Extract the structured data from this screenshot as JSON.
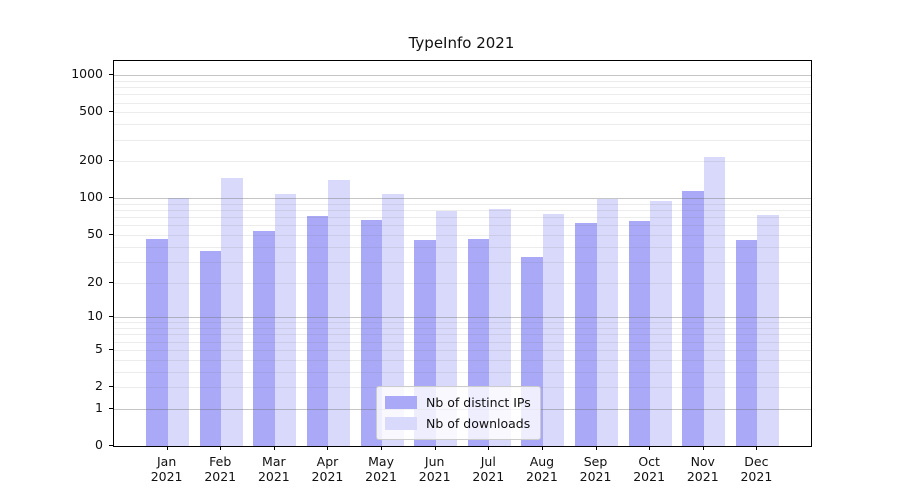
{
  "chart_data": {
    "type": "bar",
    "title": "TypeInfo 2021",
    "scale": "log1p",
    "categories": [
      "Jan 2021",
      "Feb 2021",
      "Mar 2021",
      "Apr 2021",
      "May 2021",
      "Jun 2021",
      "Jul 2021",
      "Aug 2021",
      "Sep 2021",
      "Oct 2021",
      "Nov 2021",
      "Dec 2021"
    ],
    "series": [
      {
        "name": "Nb of distinct IPs",
        "color": "#a9a9f7",
        "values": [
          46,
          37,
          54,
          72,
          66,
          45,
          46,
          33,
          63,
          65,
          115,
          45
        ]
      },
      {
        "name": "Nb of downloads",
        "color": "#d9d9fb",
        "values": [
          100,
          147,
          108,
          140,
          108,
          79,
          82,
          75,
          98,
          95,
          215,
          73
        ]
      }
    ],
    "y_ticks": [
      0,
      1,
      2,
      5,
      10,
      20,
      50,
      100,
      200,
      500,
      1000
    ],
    "ylim": [
      0,
      1302
    ],
    "grid": {
      "major": [
        1,
        10,
        100,
        1000
      ],
      "minor": [
        2,
        3,
        4,
        5,
        6,
        7,
        8,
        9,
        20,
        30,
        40,
        50,
        60,
        70,
        80,
        90,
        200,
        300,
        400,
        500,
        600,
        700,
        800,
        900
      ]
    },
    "legend_position": "lower center"
  },
  "colors": {
    "grid_major": "rgba(110,110,110,0.40)",
    "grid_minor": "rgba(110,110,110,0.13)",
    "axis": "#000000",
    "text": "#111111",
    "legend_border": "#cccccc",
    "legend_bg": "rgba(255,255,255,0.8)"
  }
}
